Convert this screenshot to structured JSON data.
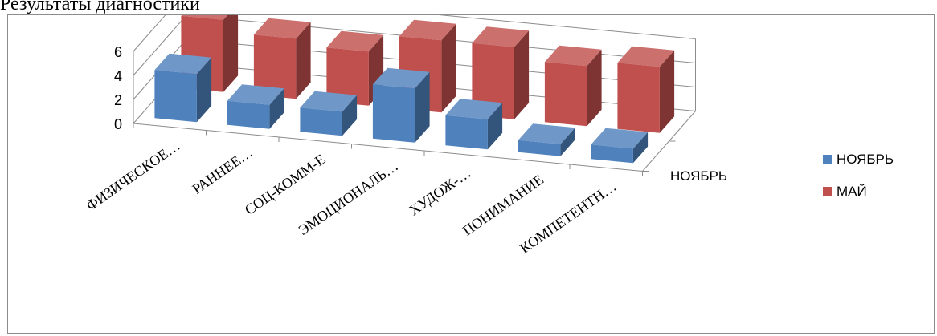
{
  "page_heading": "Результаты диагностики",
  "chart_data": {
    "type": "bar",
    "variant": "3d-clustered-column",
    "categories": [
      "ФИЗИЧЕСКОЕ…",
      "РАННЕЕ…",
      "СОЦ-КОММ-Е",
      "ЭМОЦИОНАЛЬ…",
      "ХУДОЖ-…",
      "ПОНИМАНИЕ",
      "КОМПЕТЕНТН…"
    ],
    "series": [
      {
        "name": "НОЯБРЬ",
        "color": "#4f81bd",
        "values": [
          4,
          2,
          2,
          4.5,
          2.5,
          1,
          1.2
        ]
      },
      {
        "name": "МАЙ",
        "color": "#c0504d",
        "values": [
          6,
          5,
          4.5,
          6,
          6,
          5,
          5.5
        ]
      }
    ],
    "depth_axis_labels": [
      "НОЯБРЬ"
    ],
    "y_ticks": [
      "0",
      "2",
      "4",
      "6"
    ],
    "ylim": [
      0,
      6
    ],
    "grid": true,
    "legend_position": "right",
    "colors": {
      "blue_series": "#4f81bd",
      "red_series": "#c0504d"
    }
  }
}
